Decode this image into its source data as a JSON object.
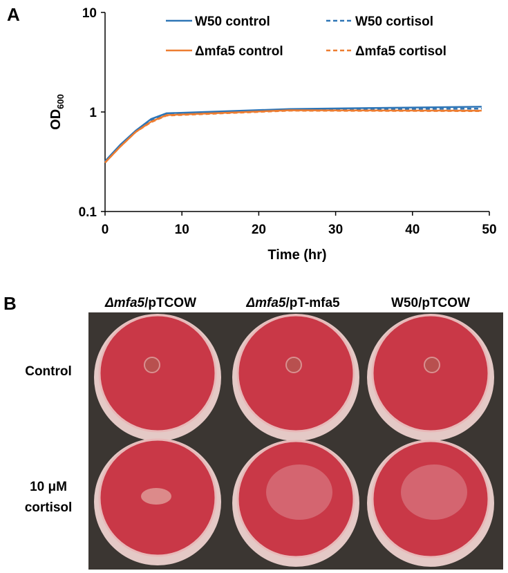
{
  "panel_a_label": "A",
  "chart_data": {
    "type": "line",
    "x_label": "Time (hr)",
    "y_label": "OD",
    "y_label_subscript": "600",
    "x": [
      0,
      2,
      4,
      6,
      8,
      24,
      49
    ],
    "series": [
      {
        "name": "W50 control",
        "color": "#2e75b6",
        "dash": false,
        "values": [
          0.32,
          0.47,
          0.65,
          0.85,
          0.97,
          1.07,
          1.13
        ]
      },
      {
        "name": "W50 cortisol",
        "color": "#2e75b6",
        "dash": true,
        "values": [
          0.31,
          0.46,
          0.64,
          0.83,
          0.95,
          1.06,
          1.08
        ]
      },
      {
        "name": "Δmfa5 control",
        "color": "#ed7d31",
        "dash": false,
        "values": [
          0.31,
          0.45,
          0.63,
          0.8,
          0.93,
          1.04,
          1.03
        ]
      },
      {
        "name": "Δmfa5 cortisol",
        "color": "#ed7d31",
        "dash": true,
        "values": [
          0.31,
          0.45,
          0.63,
          0.79,
          0.92,
          1.03,
          1.02
        ]
      }
    ],
    "xlim": [
      0,
      50
    ],
    "xticks": [
      0,
      10,
      20,
      30,
      40,
      50
    ],
    "ylim": [
      0.1,
      10
    ],
    "yticks": [
      0.1,
      1,
      10
    ],
    "log_y": true,
    "grid": false,
    "legend": "top"
  },
  "panel_b": {
    "label": "B",
    "columns": [
      {
        "italic": "Δmfa5",
        "text": "/pTCOW"
      },
      {
        "italic": "Δmfa5",
        "text": "/pT-mfa5"
      },
      {
        "italic": "",
        "text": "W50/pTCOW"
      }
    ],
    "rows": [
      [
        "Control"
      ],
      [
        "10 μM",
        "cortisol"
      ]
    ]
  }
}
